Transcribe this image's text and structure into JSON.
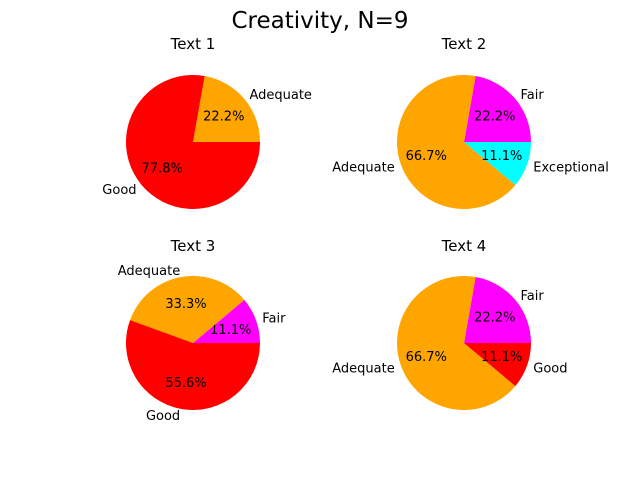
{
  "figure_title": "Creativity, N=9",
  "chart_data": [
    {
      "type": "pie",
      "title": "Text 1",
      "labels": [
        "Adequate",
        "Good"
      ],
      "values": [
        2,
        7
      ],
      "percent_labels": [
        "22.2%",
        "77.8%"
      ],
      "colors": [
        "#ffa500",
        "#ff0000"
      ]
    },
    {
      "type": "pie",
      "title": "Text 2",
      "labels": [
        "Fair",
        "Adequate",
        "Exceptional"
      ],
      "values": [
        2,
        6,
        1
      ],
      "percent_labels": [
        "22.2%",
        "66.7%",
        "11.1%"
      ],
      "colors": [
        "#ff00ff",
        "#ffa500",
        "#00ffff"
      ]
    },
    {
      "type": "pie",
      "title": "Text 3",
      "labels": [
        "Fair",
        "Adequate",
        "Good"
      ],
      "values": [
        1,
        3,
        5
      ],
      "percent_labels": [
        "11.1%",
        "33.3%",
        "55.6%"
      ],
      "colors": [
        "#ff00ff",
        "#ffa500",
        "#ff0000"
      ]
    },
    {
      "type": "pie",
      "title": "Text 4",
      "labels": [
        "Fair",
        "Adequate",
        "Good"
      ],
      "values": [
        2,
        6,
        1
      ],
      "percent_labels": [
        "22.2%",
        "66.7%",
        "11.1%"
      ],
      "colors": [
        "#ff00ff",
        "#ffa500",
        "#ff0000"
      ]
    }
  ]
}
